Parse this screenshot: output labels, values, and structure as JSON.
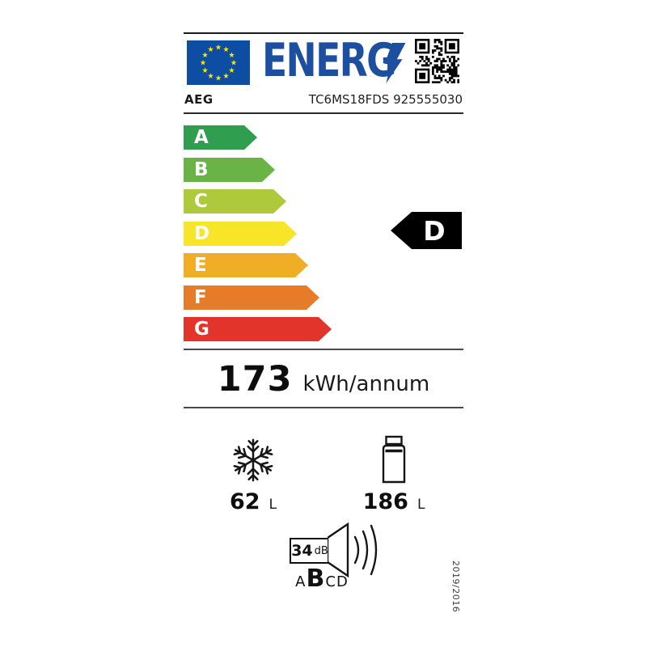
{
  "header": {
    "logo_text": "ENERG",
    "brand": "AEG",
    "model": "TC6MS18FDS 925555030"
  },
  "scale": {
    "grades": [
      {
        "letter": "A",
        "color": "#2f9e4f"
      },
      {
        "letter": "B",
        "color": "#6ab347"
      },
      {
        "letter": "C",
        "color": "#aec93b"
      },
      {
        "letter": "D",
        "color": "#f9e528"
      },
      {
        "letter": "E",
        "color": "#efae26"
      },
      {
        "letter": "F",
        "color": "#e67c2a"
      },
      {
        "letter": "G",
        "color": "#e2342b"
      }
    ],
    "current": "D"
  },
  "energy": {
    "value": "173",
    "unit": "kWh/annum"
  },
  "compartments": {
    "freezer": {
      "value": "62",
      "unit": "L"
    },
    "fridge": {
      "value": "186",
      "unit": "L"
    }
  },
  "noise": {
    "value": "34",
    "unit": "dB",
    "grades": [
      "A",
      "B",
      "C",
      "D"
    ],
    "current": "B"
  },
  "regulation": "2019/2016",
  "colors": {
    "logo_blue": "#1d4fa1",
    "flag_blue": "#0d4ea3",
    "star_yellow": "#ffe500"
  }
}
